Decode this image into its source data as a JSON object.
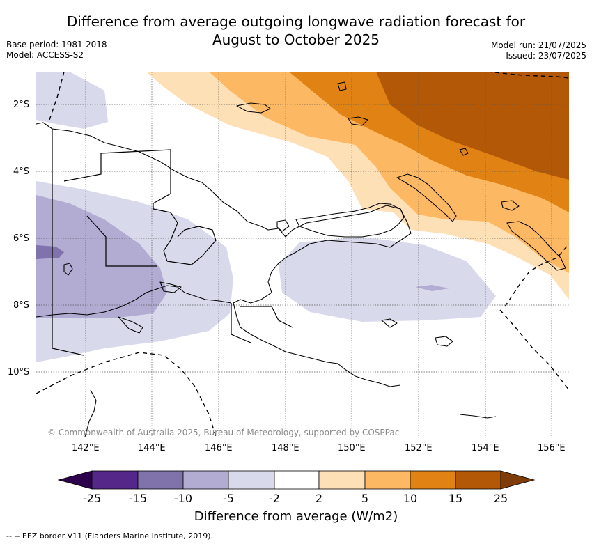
{
  "header": {
    "title_line1": "Difference from average outgoing longwave radiation forecast for",
    "title_line2": "August to October 2025",
    "base_period": "Base period: 1981-2018",
    "model": "Model: ACCESS-S2",
    "model_run": "Model run: 21/07/2025",
    "issued": "Issued: 23/07/2025"
  },
  "map": {
    "lat_labels": [
      "2°S",
      "4°S",
      "6°S",
      "8°S",
      "10°S"
    ],
    "lon_labels": [
      "142°E",
      "144°E",
      "146°E",
      "148°E",
      "150°E",
      "152°E",
      "154°E",
      "156°E"
    ],
    "copyright": "© Commonwealth of Australia 2025, Bureau of Meteorology, supported by COSPPac"
  },
  "colorbar": {
    "tick_labels": [
      "-25",
      "-15",
      "-10",
      "-5",
      "-2",
      "2",
      "5",
      "10",
      "15",
      "25"
    ],
    "colors": [
      "#2d004b",
      "#542788",
      "#8073ac",
      "#b2abd2",
      "#d8daeb",
      "#ffffff",
      "#fee0b6",
      "#fdb863",
      "#e08214",
      "#b35806",
      "#7f3b08"
    ],
    "title": "Difference from average (W/m2)"
  },
  "legend": {
    "eez_label": "-- EEZ border V11 (Flanders Marine Institute, 2019)."
  }
}
